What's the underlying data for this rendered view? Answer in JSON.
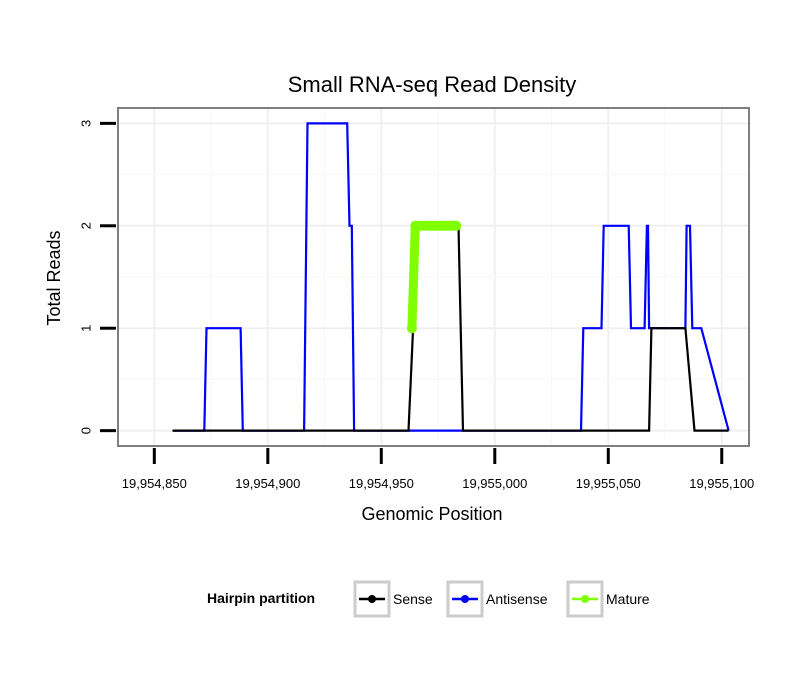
{
  "chart_data": {
    "type": "line",
    "title": "Small RNA-seq Read Density",
    "xlabel": "Genomic Position",
    "ylabel": "Total Reads",
    "xlim": [
      19954834,
      19955112
    ],
    "ylim": [
      -0.15,
      3.15
    ],
    "x_ticks": [
      19954850,
      19954900,
      19954950,
      19955000,
      19955050,
      19955100
    ],
    "x_tick_labels": [
      "19,954,850",
      "19,954,900",
      "19,954,950",
      "19,955,000",
      "19,955,050",
      "19,955,100"
    ],
    "y_ticks": [
      0,
      1,
      2,
      3
    ],
    "y_tick_labels": [
      "0",
      "1",
      "2",
      "3"
    ],
    "grid": true,
    "legend": {
      "title": "Hairpin partition",
      "placement": "bottom",
      "entries": [
        {
          "label": "Sense",
          "color": "#000000"
        },
        {
          "label": "Antisense",
          "color": "#0000ff"
        },
        {
          "label": "Mature",
          "color": "#7fff00"
        }
      ]
    },
    "series": [
      {
        "name": "Antisense",
        "color": "#0000ff",
        "x": [
          19954858,
          19954872,
          19954873,
          19954888,
          19954889,
          19954916,
          19954917.5,
          19954935,
          19954936,
          19954937,
          19954938,
          19954994,
          19955038,
          19955039,
          19955047,
          19955048,
          19955059,
          19955060,
          19955066,
          19955067,
          19955067.5,
          19955068,
          19955084,
          19955084.5,
          19955086,
          19955087,
          19955091,
          19955103
        ],
        "y": [
          0,
          0,
          1,
          1,
          0,
          0,
          3,
          3,
          2,
          2,
          0,
          0,
          0,
          1,
          1,
          2,
          2,
          1,
          1,
          2,
          2,
          1,
          1,
          2,
          2,
          1,
          1,
          0
        ]
      },
      {
        "name": "Sense",
        "color": "#000000",
        "x": [
          19954858,
          19954962,
          19954964,
          19954965,
          19954976,
          19954983,
          19954984,
          19954985,
          19954986,
          19955049,
          19955068,
          19955069,
          19955083,
          19955084,
          19955088,
          19955100,
          19955103
        ],
        "y": [
          0,
          0,
          1,
          2,
          2,
          2,
          2,
          1,
          0,
          0,
          0,
          1,
          1,
          1,
          0,
          0,
          0
        ]
      },
      {
        "name": "Mature",
        "color": "#7fff00",
        "x": [
          19954963.5,
          19954965,
          19954966,
          19954967,
          19954968,
          19954969,
          19954970,
          19954971,
          19954972,
          19954973,
          19954974,
          19954975,
          19954976,
          19954977,
          19954978,
          19954979,
          19954980,
          19954981,
          19954982,
          19954983
        ],
        "y": [
          1,
          2,
          2,
          2,
          2,
          2,
          2,
          2,
          2,
          2,
          2,
          2,
          2,
          2,
          2,
          2,
          2,
          2,
          2,
          2
        ]
      }
    ]
  }
}
